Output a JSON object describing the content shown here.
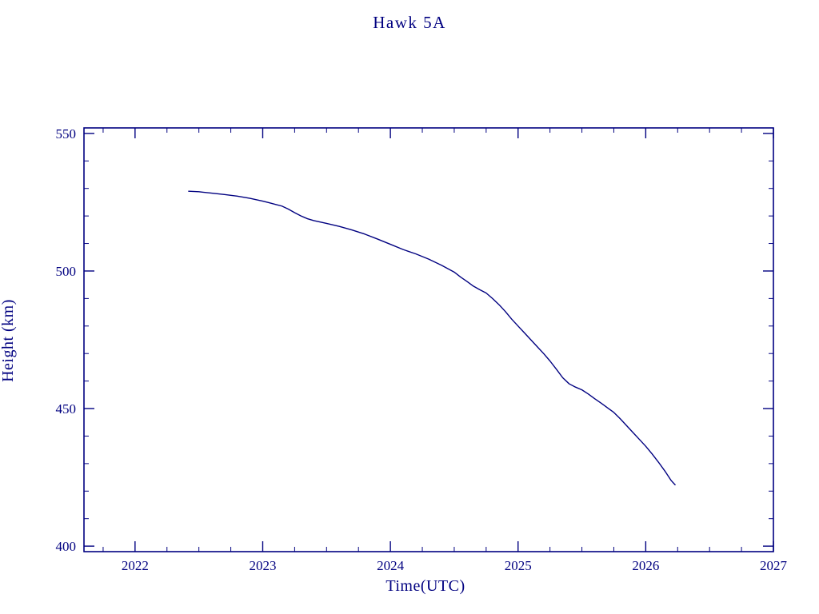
{
  "page": {
    "background_color": "#ffffff",
    "accent_color": "#000080"
  },
  "chart_data": {
    "type": "line",
    "title": "Hawk 5A",
    "xlabel": "Time(UTC)",
    "ylabel": "Height (km)",
    "line_color": "#000080",
    "axis_color": "#000080",
    "grid": false,
    "legend": "none",
    "xlim": [
      2021.6,
      2027.0
    ],
    "ylim": [
      398,
      552
    ],
    "xticks": [
      2022,
      2023,
      2024,
      2025,
      2026,
      2027
    ],
    "yticks": [
      400,
      450,
      500,
      550
    ],
    "x_minor_step": 0.25,
    "y_minor_step": 10,
    "series": [
      {
        "name": "Hawk 5A orbital height",
        "points": [
          [
            2022.42,
            529.0
          ],
          [
            2022.5,
            528.8
          ],
          [
            2022.6,
            528.3
          ],
          [
            2022.7,
            527.8
          ],
          [
            2022.8,
            527.2
          ],
          [
            2022.9,
            526.4
          ],
          [
            2023.0,
            525.4
          ],
          [
            2023.05,
            524.8
          ],
          [
            2023.1,
            524.2
          ],
          [
            2023.15,
            523.6
          ],
          [
            2023.2,
            522.5
          ],
          [
            2023.25,
            521.2
          ],
          [
            2023.3,
            520.0
          ],
          [
            2023.35,
            519.0
          ],
          [
            2023.4,
            518.3
          ],
          [
            2023.5,
            517.3
          ],
          [
            2023.6,
            516.2
          ],
          [
            2023.7,
            514.9
          ],
          [
            2023.8,
            513.4
          ],
          [
            2023.9,
            511.6
          ],
          [
            2024.0,
            509.7
          ],
          [
            2024.1,
            507.8
          ],
          [
            2024.2,
            506.2
          ],
          [
            2024.3,
            504.3
          ],
          [
            2024.4,
            502.1
          ],
          [
            2024.5,
            499.6
          ],
          [
            2024.55,
            497.8
          ],
          [
            2024.6,
            496.2
          ],
          [
            2024.65,
            494.5
          ],
          [
            2024.7,
            493.2
          ],
          [
            2024.75,
            492.0
          ],
          [
            2024.8,
            490.0
          ],
          [
            2024.85,
            487.8
          ],
          [
            2024.9,
            485.3
          ],
          [
            2024.95,
            482.5
          ],
          [
            2025.0,
            480.0
          ],
          [
            2025.05,
            477.5
          ],
          [
            2025.1,
            475.0
          ],
          [
            2025.15,
            472.5
          ],
          [
            2025.2,
            470.0
          ],
          [
            2025.25,
            467.3
          ],
          [
            2025.3,
            464.3
          ],
          [
            2025.35,
            461.2
          ],
          [
            2025.4,
            459.0
          ],
          [
            2025.45,
            457.8
          ],
          [
            2025.5,
            456.8
          ],
          [
            2025.55,
            455.3
          ],
          [
            2025.6,
            453.6
          ],
          [
            2025.65,
            452.0
          ],
          [
            2025.7,
            450.3
          ],
          [
            2025.75,
            448.6
          ],
          [
            2025.8,
            446.3
          ],
          [
            2025.85,
            443.8
          ],
          [
            2025.9,
            441.3
          ],
          [
            2025.95,
            438.8
          ],
          [
            2026.0,
            436.3
          ],
          [
            2026.05,
            433.5
          ],
          [
            2026.1,
            430.5
          ],
          [
            2026.15,
            427.3
          ],
          [
            2026.2,
            423.8
          ],
          [
            2026.23,
            422.3
          ]
        ]
      }
    ]
  }
}
